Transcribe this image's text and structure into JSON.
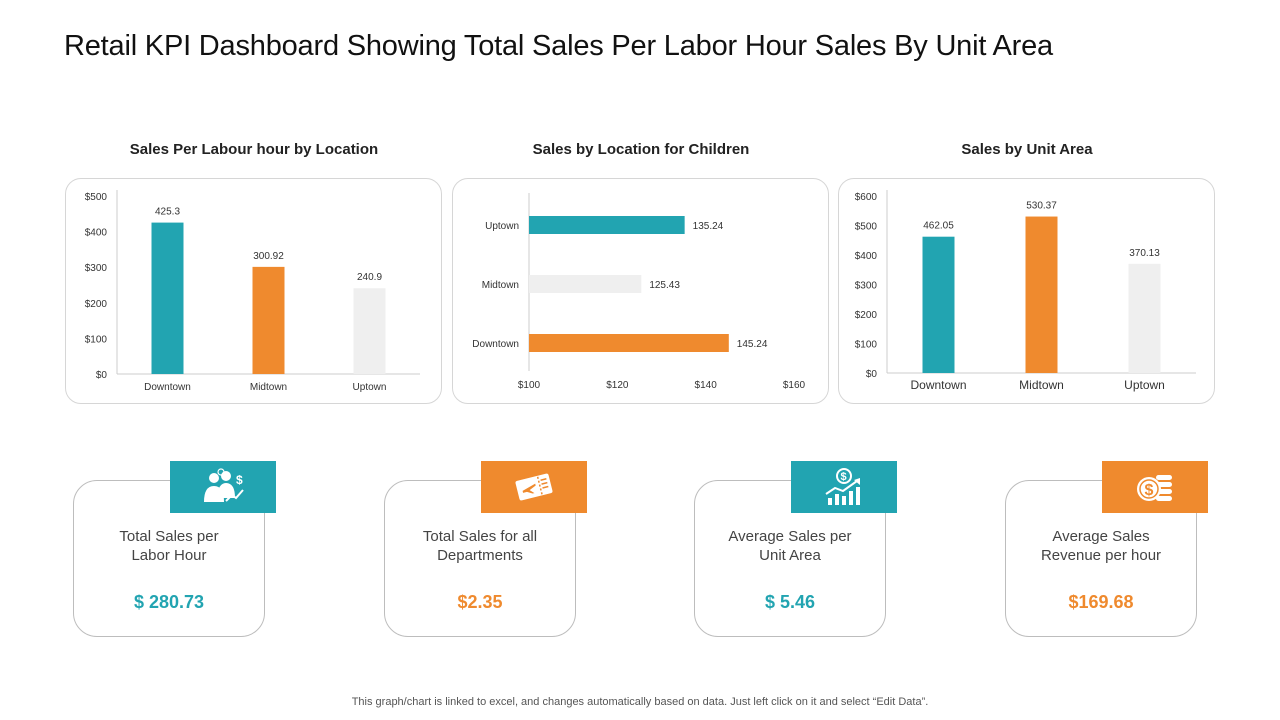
{
  "page_title": "Retail KPI Dashboard Showing Total Sales Per Labor Hour Sales By Unit Area",
  "colors": {
    "teal": "#22a4b1",
    "orange": "#ef8a2e",
    "light": "#efefef",
    "axis": "#cccccc",
    "text": "#333333"
  },
  "chart_data": [
    {
      "type": "bar",
      "orientation": "vertical",
      "title": "Sales Per Labour hour by Location",
      "categories": [
        "Downtown",
        "Midtown",
        "Uptown"
      ],
      "values": [
        425.3,
        300.92,
        240.9
      ],
      "value_labels": [
        "425.3",
        "300.92",
        "240.9"
      ],
      "bar_colors": [
        "#22a4b1",
        "#ef8a2e",
        "#efefef"
      ],
      "ylim": [
        0,
        500
      ],
      "yticks": [
        0,
        100,
        200,
        300,
        400,
        500
      ],
      "ytick_labels": [
        "$0",
        "$100",
        "$200",
        "$300",
        "$400",
        "$500"
      ]
    },
    {
      "type": "bar",
      "orientation": "horizontal",
      "title": "Sales by Location for Children",
      "categories": [
        "Uptown",
        "Midtown",
        "Downtown"
      ],
      "values": [
        135.24,
        125.43,
        145.24
      ],
      "value_labels": [
        "135.24",
        "125.43",
        "145.24"
      ],
      "bar_colors": [
        "#22a4b1",
        "#efefef",
        "#ef8a2e"
      ],
      "xlim": [
        100,
        160
      ],
      "xticks": [
        100,
        120,
        140,
        160
      ],
      "xtick_labels": [
        "$100",
        "$120",
        "$140",
        "$160"
      ]
    },
    {
      "type": "bar",
      "orientation": "vertical",
      "title": "Sales by Unit Area",
      "categories": [
        "Downtown",
        "Midtown",
        "Uptown"
      ],
      "values": [
        462.05,
        530.37,
        370.13
      ],
      "value_labels": [
        "462.05",
        "530.37",
        "370.13"
      ],
      "bar_colors": [
        "#22a4b1",
        "#ef8a2e",
        "#efefef"
      ],
      "ylim": [
        0,
        600
      ],
      "yticks": [
        0,
        100,
        200,
        300,
        400,
        500,
        600
      ],
      "ytick_labels": [
        "$0",
        "$100",
        "$200",
        "$300",
        "$400",
        "$500",
        "$600"
      ]
    }
  ],
  "kpis": [
    {
      "label": "Total Sales per\nLabor Hour",
      "value": "$ 280.73",
      "color": "#22a4b1",
      "icon": "team-dollar-icon"
    },
    {
      "label": "Total Sales for all\nDepartments",
      "value": "$2.35",
      "color": "#ef8a2e",
      "icon": "ticket-plane-icon"
    },
    {
      "label": "Average Sales per\nUnit Area",
      "value": "$ 5.46",
      "color": "#22a4b1",
      "icon": "dollar-growth-chart-icon"
    },
    {
      "label": "Average Sales\nRevenue per hour",
      "value": "$169.68",
      "color": "#ef8a2e",
      "icon": "coin-stack-icon"
    }
  ],
  "footnote": "This graph/chart is linked to excel, and changes automatically based on data. Just left click on it and select “Edit Data”."
}
